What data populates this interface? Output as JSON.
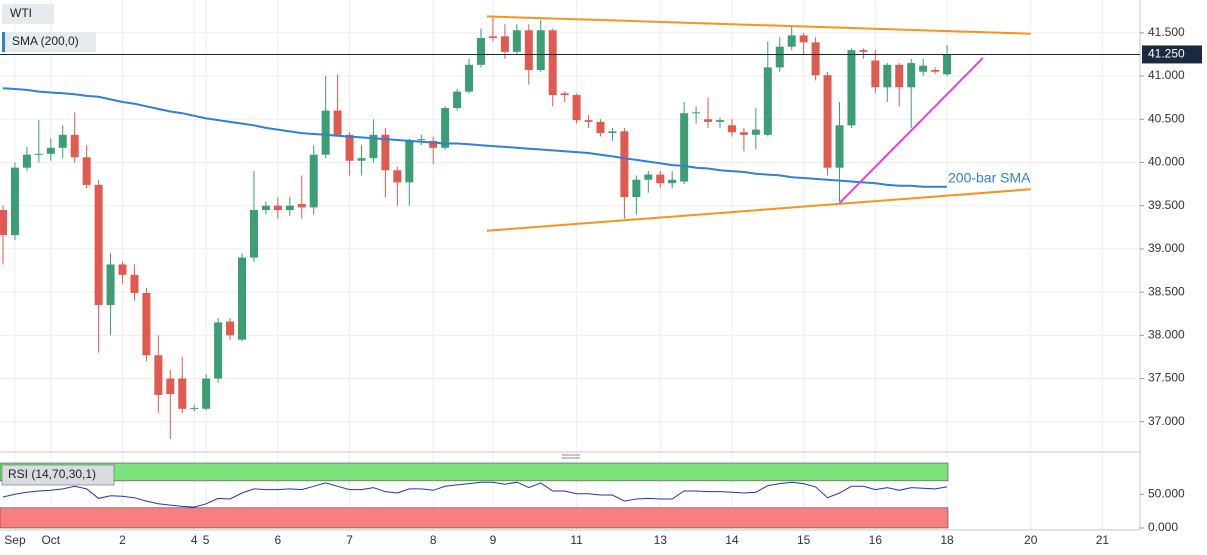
{
  "chart_data": {
    "type": "candlestick",
    "categories": [
      null,
      "Sep",
      null,
      null,
      "Oct",
      null,
      null,
      null,
      null,
      null,
      "2",
      null,
      null,
      null,
      null,
      null,
      "4",
      "5",
      null,
      null,
      null,
      null,
      null,
      "6",
      null,
      null,
      null,
      null,
      null,
      "7",
      null,
      null,
      null,
      null,
      null,
      null,
      "8",
      null,
      null,
      null,
      null,
      "9",
      null,
      null,
      null,
      null,
      null,
      null,
      "11",
      null,
      null,
      null,
      null,
      null,
      null,
      "13",
      null,
      null,
      null,
      null,
      null,
      "14",
      null,
      null,
      null,
      null,
      null,
      "15",
      null,
      null,
      null,
      null,
      null,
      "16",
      null,
      null,
      null,
      null,
      null,
      "18",
      null,
      null,
      null,
      null,
      null,
      null,
      "20",
      null,
      null,
      null,
      null,
      null,
      "21"
    ],
    "series": [
      {
        "name": "WTI",
        "type": "candlestick",
        "up_color": "#3c9e74",
        "down_color": "#e05a4f",
        "open": [
          39.45,
          39.16,
          39.94,
          40.09,
          40.1,
          40.17,
          40.32,
          40.06,
          39.74,
          38.35,
          38.82,
          38.7,
          38.49,
          37.77,
          37.5,
          37.5,
          37.15,
          37.15,
          37.5,
          38.16,
          37.95,
          38.9,
          39.45,
          39.5,
          39.45,
          39.52,
          39.48,
          40.09,
          40.6,
          40.32,
          40.02,
          40.05,
          40.32,
          39.91,
          39.77,
          40.26,
          40.25,
          40.17,
          40.63,
          40.82,
          41.13,
          41.46,
          41.46,
          41.28,
          41.53,
          41.07,
          41.53,
          40.8,
          40.78,
          40.49,
          40.47,
          40.34,
          40.36,
          39.6,
          39.8,
          39.86,
          39.76,
          39.78,
          40.57,
          40.5,
          40.47,
          40.43,
          40.35,
          40.32,
          40.32,
          41.1,
          41.34,
          41.47,
          41.39,
          41.01,
          39.94,
          40.43,
          41.3,
          41.18,
          40.87,
          41.13,
          40.87,
          41.05,
          41.07,
          41.02,
          null,
          null,
          null,
          null,
          null,
          null,
          null,
          null,
          null,
          null,
          null,
          null,
          null
        ],
        "high": [
          39.5,
          40.0,
          40.18,
          40.49,
          40.28,
          40.43,
          40.58,
          40.2,
          39.8,
          38.95,
          38.85,
          38.82,
          38.55,
          38.0,
          37.6,
          37.75,
          37.2,
          37.55,
          38.2,
          38.2,
          38.95,
          39.9,
          39.55,
          39.6,
          39.6,
          39.85,
          40.2,
          41.0,
          41.02,
          40.35,
          40.2,
          40.5,
          40.4,
          39.95,
          40.28,
          40.32,
          40.3,
          40.65,
          40.85,
          41.2,
          41.55,
          41.7,
          41.6,
          41.6,
          41.6,
          41.65,
          41.55,
          40.82,
          40.8,
          40.55,
          40.5,
          40.4,
          40.4,
          39.85,
          39.9,
          39.9,
          39.9,
          40.7,
          40.65,
          40.75,
          40.52,
          40.5,
          40.4,
          40.63,
          41.4,
          41.45,
          41.57,
          41.5,
          41.45,
          41.05,
          40.7,
          41.32,
          41.32,
          41.3,
          41.15,
          41.15,
          41.2,
          41.2,
          41.1,
          41.36,
          null,
          null,
          null,
          null,
          null,
          null,
          null,
          null,
          null,
          null,
          null,
          null,
          null
        ],
        "low": [
          38.82,
          39.1,
          39.9,
          40.0,
          40.02,
          40.05,
          40.0,
          39.7,
          37.8,
          38.0,
          38.6,
          38.4,
          37.7,
          37.1,
          36.8,
          37.1,
          37.12,
          37.13,
          37.45,
          37.95,
          37.93,
          38.85,
          39.4,
          39.35,
          39.38,
          39.35,
          39.4,
          40.05,
          40.3,
          39.85,
          39.85,
          40.0,
          39.6,
          39.5,
          39.5,
          40.2,
          39.98,
          40.15,
          40.6,
          40.8,
          41.1,
          41.4,
          41.2,
          41.25,
          40.9,
          41.05,
          40.65,
          40.7,
          40.45,
          40.4,
          40.3,
          40.25,
          39.35,
          39.4,
          39.65,
          39.7,
          39.7,
          39.75,
          40.45,
          40.4,
          40.4,
          40.3,
          40.13,
          40.15,
          40.3,
          41.05,
          41.3,
          41.25,
          40.95,
          39.85,
          39.55,
          40.4,
          41.2,
          40.8,
          40.7,
          40.65,
          40.4,
          41.0,
          41.02,
          41.0,
          null,
          null,
          null,
          null,
          null,
          null,
          null,
          null,
          null,
          null,
          null,
          null,
          null
        ],
        "close": [
          39.16,
          39.94,
          40.09,
          40.1,
          40.17,
          40.32,
          40.06,
          39.74,
          38.35,
          38.82,
          38.7,
          38.49,
          37.77,
          37.31,
          37.32,
          37.15,
          37.16,
          37.5,
          38.15,
          38.0,
          38.9,
          39.45,
          39.5,
          39.45,
          39.5,
          39.48,
          40.09,
          40.6,
          40.32,
          40.02,
          40.05,
          40.32,
          39.91,
          39.77,
          40.26,
          40.27,
          40.17,
          40.63,
          40.82,
          41.13,
          41.44,
          41.44,
          41.28,
          41.53,
          41.07,
          41.53,
          40.78,
          40.78,
          40.49,
          40.47,
          40.34,
          40.36,
          39.6,
          39.8,
          39.86,
          39.76,
          39.8,
          40.57,
          40.58,
          40.47,
          40.49,
          40.35,
          40.32,
          40.38,
          41.1,
          41.34,
          41.47,
          41.39,
          41.01,
          39.94,
          40.43,
          41.3,
          41.28,
          40.87,
          41.13,
          40.87,
          41.15,
          41.12,
          41.05,
          41.25,
          null,
          null,
          null,
          null,
          null,
          null,
          null,
          null,
          null,
          null,
          null,
          null,
          null
        ]
      },
      {
        "name": "SMA (200,0)",
        "type": "line",
        "color": "#2f80d8",
        "values": [
          40.86,
          40.85,
          40.84,
          40.82,
          40.81,
          40.8,
          40.79,
          40.77,
          40.76,
          40.73,
          40.7,
          40.68,
          40.65,
          40.62,
          40.59,
          40.57,
          40.54,
          40.51,
          40.49,
          40.47,
          40.45,
          40.43,
          40.4,
          40.38,
          40.36,
          40.34,
          40.33,
          40.32,
          40.31,
          40.3,
          40.29,
          40.28,
          40.27,
          40.26,
          40.25,
          40.24,
          40.23,
          40.22,
          40.22,
          40.21,
          40.2,
          40.19,
          40.18,
          40.17,
          40.16,
          40.15,
          40.14,
          40.13,
          40.12,
          40.11,
          40.09,
          40.07,
          40.05,
          40.03,
          40.01,
          39.99,
          39.97,
          39.96,
          39.94,
          39.93,
          39.91,
          39.9,
          39.89,
          39.87,
          39.86,
          39.85,
          39.83,
          39.82,
          39.81,
          39.8,
          39.79,
          39.78,
          39.77,
          39.76,
          39.74,
          39.73,
          39.73,
          39.72,
          39.72,
          39.72,
          null,
          null,
          null,
          null,
          null,
          null,
          null,
          null,
          null,
          null,
          null,
          null,
          null
        ]
      }
    ],
    "ylim": [
      36.65,
      41.88
    ],
    "yticks": [
      {
        "value": 37,
        "label": "37.000"
      },
      {
        "value": 37.5,
        "label": "37.500"
      },
      {
        "value": 38,
        "label": "38.000"
      },
      {
        "value": 38.5,
        "label": "38.500"
      },
      {
        "value": 39,
        "label": "39.000"
      },
      {
        "value": 39.5,
        "label": "39.500"
      },
      {
        "value": 40,
        "label": "40.000"
      },
      {
        "value": 40.5,
        "label": "40.500"
      },
      {
        "value": 41,
        "label": "41.000"
      },
      {
        "value": 41.5,
        "label": "41.500"
      }
    ],
    "grid": true,
    "last_price": 41.25,
    "last_price_label": "41.250",
    "annotations": [
      {
        "text": "200-bar SMA",
        "color": "#2f80d8"
      }
    ],
    "trendlines": [
      {
        "color": "#f7931e",
        "points": [
          [
            40.5,
            41.69
          ],
          [
            86,
            41.49
          ]
        ]
      },
      {
        "color": "#f7931e",
        "points": [
          [
            40.5,
            39.21
          ],
          [
            86,
            39.69
          ]
        ]
      },
      {
        "color": "#e83ee8",
        "points": [
          [
            70,
            39.53
          ],
          [
            82,
            41.21
          ]
        ]
      }
    ],
    "rsi": {
      "name": "RSI (14,70,30,1)",
      "color": "#2233cc",
      "overbought": 70,
      "oversold": 30,
      "ylim": [
        -3,
        101
      ],
      "yticks": [
        {
          "value": 50,
          "label": "50.000"
        },
        {
          "value": 0,
          "label": "0.000"
        }
      ],
      "values": [
        46,
        50,
        53,
        55,
        56,
        58,
        62,
        58,
        44,
        48,
        47,
        45,
        40,
        36,
        34,
        32,
        31,
        36,
        44,
        43,
        52,
        58,
        57,
        57,
        58,
        57,
        62,
        67,
        62,
        57,
        57,
        60,
        54,
        52,
        58,
        58,
        56,
        62,
        64,
        66,
        68,
        68,
        65,
        68,
        60,
        67,
        55,
        55,
        51,
        51,
        49,
        49,
        40,
        43,
        44,
        43,
        43,
        55,
        55,
        54,
        54,
        53,
        52,
        53,
        63,
        66,
        68,
        66,
        61,
        45,
        52,
        62,
        62,
        57,
        60,
        56,
        60,
        59,
        58,
        61,
        null,
        null,
        null,
        null,
        null,
        null,
        null,
        null,
        null,
        null,
        null,
        null,
        null
      ]
    }
  }
}
